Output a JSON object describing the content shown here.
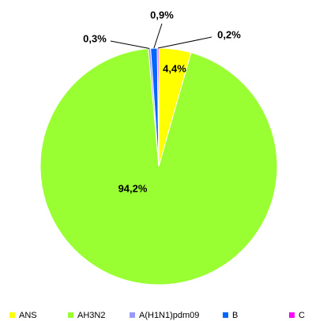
{
  "chart_data": {
    "type": "pie",
    "categories": [
      "ANS",
      "AH3N2",
      "A(H1N1)pdm09",
      "B",
      "C"
    ],
    "values": [
      4.4,
      94.2,
      0.3,
      0.9,
      0.2
    ],
    "value_labels": [
      "4,4%",
      "94,2%",
      "0,3%",
      "0,9%",
      "0,2%"
    ],
    "colors": [
      "#ffff00",
      "#99ff33",
      "#9999ff",
      "#0066ff",
      "#ff00ff"
    ],
    "legend": "bottom"
  }
}
